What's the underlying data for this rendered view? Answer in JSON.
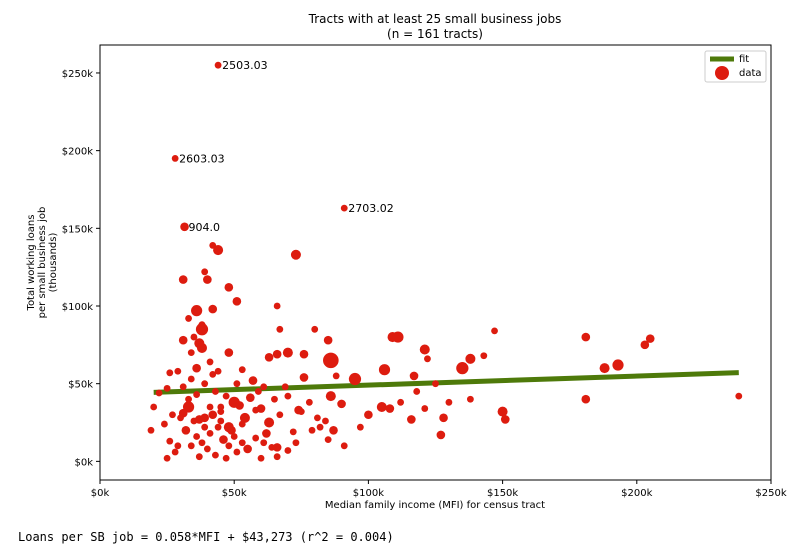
{
  "chart_data": {
    "type": "scatter",
    "title": "Tracts with at least 25 small business jobs",
    "subtitle": "(n = 161 tracts)",
    "xlabel": "Median family income (MFI) for census tract",
    "ylabel_lines": [
      "Total working loans",
      "per small business job",
      "(thousands)"
    ],
    "xlim": [
      0,
      250000
    ],
    "ylim": [
      -12000,
      268000
    ],
    "x_ticks": [
      0,
      50000,
      100000,
      150000,
      200000,
      250000
    ],
    "x_tick_labels": [
      "$0k",
      "$50k",
      "$100k",
      "$150k",
      "$200k",
      "$250k"
    ],
    "y_ticks": [
      0,
      50000,
      100000,
      150000,
      200000,
      250000
    ],
    "y_tick_labels": [
      "$0k",
      "$50k",
      "$100k",
      "$150k",
      "$200k",
      "$250k"
    ],
    "grid": false,
    "legend_position": "top-right",
    "legend": [
      {
        "label": "fit",
        "kind": "line",
        "color": "#4e7a0a"
      },
      {
        "label": "data",
        "kind": "marker",
        "color": "#dd1c0f"
      }
    ],
    "fit": {
      "name": "fit",
      "x": [
        20000,
        238000
      ],
      "y": [
        44431,
        57077
      ],
      "color": "#4e7a0a"
    },
    "series": [
      {
        "name": "data",
        "color": "#dd1c0f",
        "points": [
          {
            "x": 44000,
            "y": 255000,
            "s": 1,
            "label": "2503.03"
          },
          {
            "x": 28000,
            "y": 195000,
            "s": 1,
            "label": "2603.03"
          },
          {
            "x": 91000,
            "y": 163000,
            "s": 1,
            "label": "2703.02"
          },
          {
            "x": 31500,
            "y": 151000,
            "s": 2,
            "label": "904.0"
          },
          {
            "x": 42000,
            "y": 139000,
            "s": 1
          },
          {
            "x": 44000,
            "y": 136000,
            "s": 3
          },
          {
            "x": 73000,
            "y": 133000,
            "s": 3
          },
          {
            "x": 39000,
            "y": 122000,
            "s": 1
          },
          {
            "x": 31000,
            "y": 117000,
            "s": 2
          },
          {
            "x": 40000,
            "y": 117000,
            "s": 2
          },
          {
            "x": 48000,
            "y": 112000,
            "s": 2
          },
          {
            "x": 51000,
            "y": 103000,
            "s": 2
          },
          {
            "x": 66000,
            "y": 100000,
            "s": 1
          },
          {
            "x": 36000,
            "y": 97000,
            "s": 4
          },
          {
            "x": 42000,
            "y": 98000,
            "s": 2
          },
          {
            "x": 33000,
            "y": 92000,
            "s": 1
          },
          {
            "x": 38000,
            "y": 85000,
            "s": 5
          },
          {
            "x": 31000,
            "y": 78000,
            "s": 2
          },
          {
            "x": 37000,
            "y": 76000,
            "s": 3
          },
          {
            "x": 38000,
            "y": 73000,
            "s": 3
          },
          {
            "x": 35000,
            "y": 80000,
            "s": 1
          },
          {
            "x": 38000,
            "y": 88000,
            "s": 1
          },
          {
            "x": 67000,
            "y": 85000,
            "s": 1
          },
          {
            "x": 85000,
            "y": 78000,
            "s": 2
          },
          {
            "x": 80000,
            "y": 85000,
            "s": 1
          },
          {
            "x": 41000,
            "y": 64000,
            "s": 1
          },
          {
            "x": 48000,
            "y": 70000,
            "s": 2
          },
          {
            "x": 63000,
            "y": 67000,
            "s": 2
          },
          {
            "x": 66000,
            "y": 69000,
            "s": 2
          },
          {
            "x": 70000,
            "y": 70000,
            "s": 3
          },
          {
            "x": 76000,
            "y": 69000,
            "s": 2
          },
          {
            "x": 86000,
            "y": 65000,
            "s": 9
          },
          {
            "x": 95000,
            "y": 53000,
            "s": 5
          },
          {
            "x": 106000,
            "y": 59000,
            "s": 4
          },
          {
            "x": 109000,
            "y": 80000,
            "s": 3
          },
          {
            "x": 111000,
            "y": 80000,
            "s": 4
          },
          {
            "x": 121000,
            "y": 72000,
            "s": 3
          },
          {
            "x": 122000,
            "y": 66000,
            "s": 1
          },
          {
            "x": 135000,
            "y": 60000,
            "s": 5
          },
          {
            "x": 138000,
            "y": 66000,
            "s": 3
          },
          {
            "x": 143000,
            "y": 68000,
            "s": 1
          },
          {
            "x": 147000,
            "y": 84000,
            "s": 1
          },
          {
            "x": 181000,
            "y": 80000,
            "s": 2
          },
          {
            "x": 188000,
            "y": 60000,
            "s": 3
          },
          {
            "x": 193000,
            "y": 62000,
            "s": 4
          },
          {
            "x": 203000,
            "y": 75000,
            "s": 2
          },
          {
            "x": 205000,
            "y": 79000,
            "s": 2
          },
          {
            "x": 181000,
            "y": 40000,
            "s": 2
          },
          {
            "x": 238000,
            "y": 42000,
            "s": 1
          },
          {
            "x": 117000,
            "y": 55000,
            "s": 2
          },
          {
            "x": 118000,
            "y": 45000,
            "s": 1
          },
          {
            "x": 76000,
            "y": 54000,
            "s": 2
          },
          {
            "x": 53000,
            "y": 59000,
            "s": 1
          },
          {
            "x": 57000,
            "y": 52000,
            "s": 2
          },
          {
            "x": 61000,
            "y": 48000,
            "s": 1
          },
          {
            "x": 44000,
            "y": 58000,
            "s": 1
          },
          {
            "x": 51000,
            "y": 50000,
            "s": 1
          },
          {
            "x": 34000,
            "y": 53000,
            "s": 1
          },
          {
            "x": 36000,
            "y": 60000,
            "s": 2
          },
          {
            "x": 29000,
            "y": 58000,
            "s": 1
          },
          {
            "x": 26000,
            "y": 57000,
            "s": 1
          },
          {
            "x": 22000,
            "y": 44000,
            "s": 1
          },
          {
            "x": 33000,
            "y": 35000,
            "s": 4
          },
          {
            "x": 20000,
            "y": 35000,
            "s": 1
          },
          {
            "x": 31000,
            "y": 31000,
            "s": 2
          },
          {
            "x": 37000,
            "y": 27000,
            "s": 2
          },
          {
            "x": 39000,
            "y": 28000,
            "s": 2
          },
          {
            "x": 42000,
            "y": 30000,
            "s": 2
          },
          {
            "x": 45000,
            "y": 35000,
            "s": 1
          },
          {
            "x": 48000,
            "y": 22000,
            "s": 3
          },
          {
            "x": 50000,
            "y": 38000,
            "s": 4
          },
          {
            "x": 52000,
            "y": 36000,
            "s": 2
          },
          {
            "x": 54000,
            "y": 28000,
            "s": 3
          },
          {
            "x": 47000,
            "y": 42000,
            "s": 1
          },
          {
            "x": 60000,
            "y": 34000,
            "s": 2
          },
          {
            "x": 63000,
            "y": 25000,
            "s": 3
          },
          {
            "x": 65000,
            "y": 40000,
            "s": 1
          },
          {
            "x": 70000,
            "y": 42000,
            "s": 1
          },
          {
            "x": 74000,
            "y": 33000,
            "s": 2
          },
          {
            "x": 75000,
            "y": 32000,
            "s": 1
          },
          {
            "x": 81000,
            "y": 28000,
            "s": 1
          },
          {
            "x": 84000,
            "y": 26000,
            "s": 1
          },
          {
            "x": 82000,
            "y": 22000,
            "s": 1
          },
          {
            "x": 86000,
            "y": 42000,
            "s": 3
          },
          {
            "x": 90000,
            "y": 37000,
            "s": 2
          },
          {
            "x": 100000,
            "y": 30000,
            "s": 2
          },
          {
            "x": 105000,
            "y": 35000,
            "s": 3
          },
          {
            "x": 108000,
            "y": 34000,
            "s": 2
          },
          {
            "x": 116000,
            "y": 27000,
            "s": 2
          },
          {
            "x": 121000,
            "y": 34000,
            "s": 1
          },
          {
            "x": 128000,
            "y": 28000,
            "s": 2
          },
          {
            "x": 127000,
            "y": 17000,
            "s": 2
          },
          {
            "x": 150000,
            "y": 32000,
            "s": 3
          },
          {
            "x": 151000,
            "y": 27000,
            "s": 2
          },
          {
            "x": 138000,
            "y": 40000,
            "s": 1
          },
          {
            "x": 87000,
            "y": 20000,
            "s": 2
          },
          {
            "x": 85000,
            "y": 14000,
            "s": 1
          },
          {
            "x": 91000,
            "y": 10000,
            "s": 1
          },
          {
            "x": 79000,
            "y": 20000,
            "s": 1
          },
          {
            "x": 73000,
            "y": 12000,
            "s": 1
          },
          {
            "x": 62000,
            "y": 18000,
            "s": 2
          },
          {
            "x": 58000,
            "y": 15000,
            "s": 1
          },
          {
            "x": 61000,
            "y": 12000,
            "s": 1
          },
          {
            "x": 55000,
            "y": 8000,
            "s": 2
          },
          {
            "x": 64000,
            "y": 9000,
            "s": 1
          },
          {
            "x": 66000,
            "y": 9000,
            "s": 2
          },
          {
            "x": 70000,
            "y": 7000,
            "s": 1
          },
          {
            "x": 51000,
            "y": 6000,
            "s": 1
          },
          {
            "x": 46000,
            "y": 14000,
            "s": 2
          },
          {
            "x": 49000,
            "y": 20000,
            "s": 2
          },
          {
            "x": 48000,
            "y": 10000,
            "s": 1
          },
          {
            "x": 50000,
            "y": 16000,
            "s": 1
          },
          {
            "x": 44000,
            "y": 22000,
            "s": 1
          },
          {
            "x": 41000,
            "y": 18000,
            "s": 1
          },
          {
            "x": 43000,
            "y": 4000,
            "s": 1
          },
          {
            "x": 40000,
            "y": 8000,
            "s": 1
          },
          {
            "x": 38000,
            "y": 12000,
            "s": 1
          },
          {
            "x": 36000,
            "y": 16000,
            "s": 1
          },
          {
            "x": 34000,
            "y": 10000,
            "s": 1
          },
          {
            "x": 32000,
            "y": 20000,
            "s": 2
          },
          {
            "x": 30000,
            "y": 28000,
            "s": 1
          },
          {
            "x": 29000,
            "y": 10000,
            "s": 1
          },
          {
            "x": 28000,
            "y": 6000,
            "s": 1
          },
          {
            "x": 26000,
            "y": 13000,
            "s": 1
          },
          {
            "x": 25000,
            "y": 2000,
            "s": 1
          },
          {
            "x": 19000,
            "y": 20000,
            "s": 1
          },
          {
            "x": 24000,
            "y": 24000,
            "s": 1
          },
          {
            "x": 27000,
            "y": 30000,
            "s": 1
          },
          {
            "x": 33000,
            "y": 40000,
            "s": 1
          },
          {
            "x": 35000,
            "y": 26000,
            "s": 1
          },
          {
            "x": 37000,
            "y": 3000,
            "s": 1
          },
          {
            "x": 41000,
            "y": 35000,
            "s": 1
          },
          {
            "x": 45000,
            "y": 26000,
            "s": 1
          },
          {
            "x": 47000,
            "y": 2000,
            "s": 1
          },
          {
            "x": 53000,
            "y": 24000,
            "s": 1
          },
          {
            "x": 56000,
            "y": 41000,
            "s": 2
          },
          {
            "x": 58000,
            "y": 33000,
            "s": 1
          },
          {
            "x": 67000,
            "y": 30000,
            "s": 1
          },
          {
            "x": 72000,
            "y": 19000,
            "s": 1
          },
          {
            "x": 78000,
            "y": 38000,
            "s": 1
          },
          {
            "x": 97000,
            "y": 22000,
            "s": 1
          },
          {
            "x": 112000,
            "y": 38000,
            "s": 1
          },
          {
            "x": 130000,
            "y": 38000,
            "s": 1
          },
          {
            "x": 60000,
            "y": 2000,
            "s": 1
          },
          {
            "x": 66000,
            "y": 3000,
            "s": 1
          },
          {
            "x": 43000,
            "y": 45000,
            "s": 1
          },
          {
            "x": 39000,
            "y": 50000,
            "s": 1
          },
          {
            "x": 25000,
            "y": 47000,
            "s": 1
          },
          {
            "x": 34000,
            "y": 70000,
            "s": 1
          },
          {
            "x": 42000,
            "y": 56000,
            "s": 1
          },
          {
            "x": 59000,
            "y": 45000,
            "s": 1
          },
          {
            "x": 88000,
            "y": 55000,
            "s": 1
          },
          {
            "x": 125000,
            "y": 50000,
            "s": 1
          },
          {
            "x": 31000,
            "y": 48000,
            "s": 1
          },
          {
            "x": 36000,
            "y": 43000,
            "s": 1
          },
          {
            "x": 45000,
            "y": 32000,
            "s": 1
          },
          {
            "x": 39000,
            "y": 22000,
            "s": 1
          },
          {
            "x": 53000,
            "y": 12000,
            "s": 1
          },
          {
            "x": 69000,
            "y": 48000,
            "s": 1
          }
        ]
      }
    ]
  },
  "equation_text": "Loans per SB job = 0.058*MFI + $43,273 (r^2 = 0.004)"
}
